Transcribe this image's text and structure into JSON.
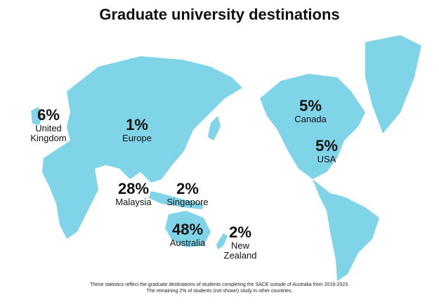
{
  "title": "Graduate university destinations",
  "destinations": [
    {
      "percent": "6%",
      "name": "United Kingdom"
    },
    {
      "percent": "1%",
      "name": "Europe"
    },
    {
      "percent": "28%",
      "name": "Malaysia"
    },
    {
      "percent": "2%",
      "name": "Singapore"
    },
    {
      "percent": "48%",
      "name": "Australia"
    },
    {
      "percent": "2%",
      "name": "New Zealand"
    },
    {
      "percent": "5%",
      "name": "Canada"
    },
    {
      "percent": "5%",
      "name": "USA"
    }
  ],
  "footnote": [
    "These statistics reflect the graduate destinations of students completing the SACE outside of Australia from 2018-2023.",
    "The remaining 2% of students (not shown) study in other countries."
  ]
}
